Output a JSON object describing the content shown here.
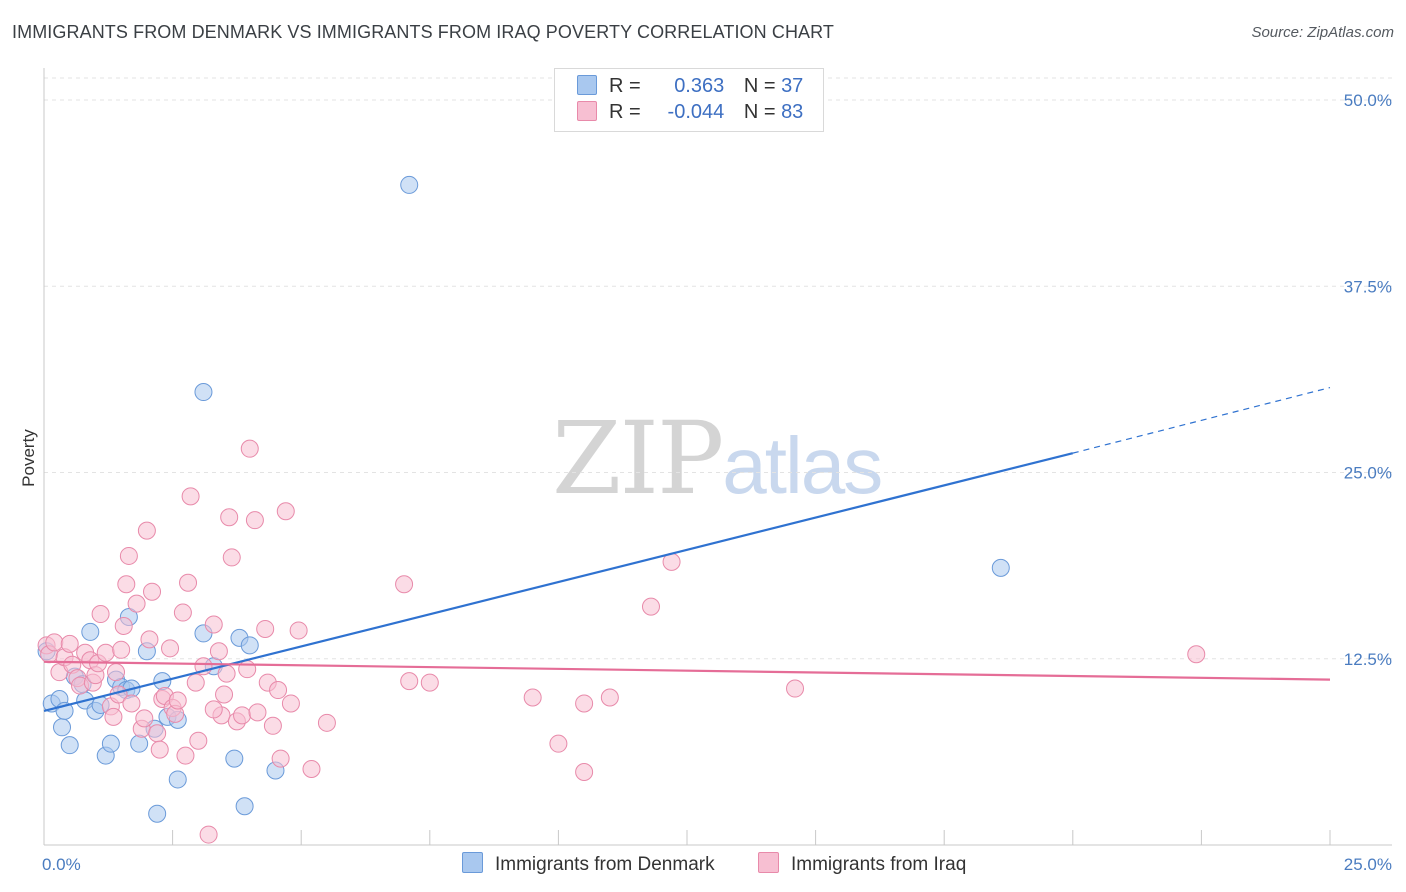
{
  "title": "IMMIGRANTS FROM DENMARK VS IMMIGRANTS FROM IRAQ POVERTY CORRELATION CHART",
  "source": "Source: ZipAtlas.com",
  "watermark": {
    "zip": "ZIP",
    "atlas": "atlas"
  },
  "legend_top": [
    {
      "r_label": "R =",
      "r_value": "0.363",
      "n_label": "N =",
      "n_value": "37",
      "color": "#a9c8ef",
      "border": "#6a9ad9"
    },
    {
      "r_label": "R =",
      "r_value": "-0.044",
      "n_label": "N =",
      "n_value": "83",
      "color": "#f7bfd2",
      "border": "#e88aaa"
    }
  ],
  "legend_bottom": [
    {
      "label": "Immigrants from Denmark",
      "color": "#a9c8ef",
      "border": "#6a9ad9"
    },
    {
      "label": "Immigrants from Iraq",
      "color": "#f7bfd2",
      "border": "#e88aaa"
    }
  ],
  "chart_data": {
    "type": "scatter",
    "title": "IMMIGRANTS FROM DENMARK VS IMMIGRANTS FROM IRAQ POVERTY CORRELATION CHART",
    "xlabel": "",
    "ylabel": "Poverty",
    "xlim": [
      0,
      25
    ],
    "ylim": [
      0,
      50
    ],
    "x_tick_labels": [
      "0.0%",
      "25.0%"
    ],
    "y_ticks": [
      12.5,
      25.0,
      37.5,
      50.0
    ],
    "y_tick_labels": [
      "12.5%",
      "25.0%",
      "37.5%",
      "50.0%"
    ],
    "grid": true,
    "series": [
      {
        "name": "Immigrants from Denmark",
        "color": "#a9c8ef",
        "stroke": "#6a9ad9",
        "line_color": "#2f72d0",
        "trend": {
          "x": [
            0,
            20
          ],
          "y": [
            9.0,
            26.3
          ],
          "dashed_to": [
            25,
            30.7
          ]
        },
        "points": [
          [
            0.15,
            9.5
          ],
          [
            0.3,
            9.8
          ],
          [
            0.35,
            7.9
          ],
          [
            0.4,
            9.0
          ],
          [
            0.5,
            6.7
          ],
          [
            0.6,
            11.3
          ],
          [
            0.75,
            10.8
          ],
          [
            0.8,
            9.7
          ],
          [
            0.9,
            14.3
          ],
          [
            1.0,
            9.0
          ],
          [
            1.1,
            9.4
          ],
          [
            1.2,
            6.0
          ],
          [
            1.3,
            6.8
          ],
          [
            1.4,
            11.1
          ],
          [
            1.5,
            10.6
          ],
          [
            1.6,
            10.4
          ],
          [
            1.65,
            15.3
          ],
          [
            1.7,
            10.5
          ],
          [
            1.85,
            6.8
          ],
          [
            2.0,
            13.0
          ],
          [
            2.15,
            7.8
          ],
          [
            2.2,
            2.1
          ],
          [
            2.3,
            11.0
          ],
          [
            2.4,
            8.6
          ],
          [
            2.6,
            4.4
          ],
          [
            2.6,
            8.4
          ],
          [
            3.1,
            30.4
          ],
          [
            3.1,
            14.2
          ],
          [
            3.3,
            12.0
          ],
          [
            3.7,
            5.8
          ],
          [
            3.8,
            13.9
          ],
          [
            3.9,
            2.6
          ],
          [
            4.0,
            13.4
          ],
          [
            4.5,
            5.0
          ],
          [
            7.1,
            44.3
          ],
          [
            18.6,
            18.6
          ],
          [
            0.05,
            13.0
          ]
        ]
      },
      {
        "name": "Immigrants from Iraq",
        "color": "#f7bfd2",
        "stroke": "#e88aaa",
        "line_color": "#e56d97",
        "trend": {
          "x": [
            0,
            25
          ],
          "y": [
            12.3,
            11.1
          ]
        },
        "points": [
          [
            0.05,
            13.4
          ],
          [
            0.1,
            12.8
          ],
          [
            0.2,
            13.6
          ],
          [
            0.3,
            11.6
          ],
          [
            0.4,
            12.6
          ],
          [
            0.5,
            13.5
          ],
          [
            0.55,
            12.1
          ],
          [
            0.65,
            11.2
          ],
          [
            0.7,
            10.7
          ],
          [
            0.8,
            12.9
          ],
          [
            0.9,
            12.4
          ],
          [
            0.95,
            10.9
          ],
          [
            1.0,
            11.4
          ],
          [
            1.05,
            12.2
          ],
          [
            1.1,
            15.5
          ],
          [
            1.2,
            12.9
          ],
          [
            1.3,
            9.3
          ],
          [
            1.35,
            8.6
          ],
          [
            1.45,
            10.1
          ],
          [
            1.5,
            13.1
          ],
          [
            1.55,
            14.7
          ],
          [
            1.6,
            17.5
          ],
          [
            1.65,
            19.4
          ],
          [
            1.7,
            9.5
          ],
          [
            1.8,
            16.2
          ],
          [
            1.9,
            7.8
          ],
          [
            1.95,
            8.5
          ],
          [
            2.0,
            21.1
          ],
          [
            2.05,
            13.8
          ],
          [
            2.1,
            17.0
          ],
          [
            2.2,
            7.5
          ],
          [
            2.25,
            6.4
          ],
          [
            2.3,
            9.8
          ],
          [
            2.35,
            10.0
          ],
          [
            2.45,
            13.2
          ],
          [
            2.5,
            9.2
          ],
          [
            2.55,
            8.8
          ],
          [
            2.6,
            9.7
          ],
          [
            2.7,
            15.6
          ],
          [
            2.75,
            6.0
          ],
          [
            2.8,
            17.6
          ],
          [
            2.85,
            23.4
          ],
          [
            2.95,
            10.9
          ],
          [
            3.0,
            7.0
          ],
          [
            3.1,
            12.0
          ],
          [
            3.2,
            0.7
          ],
          [
            3.3,
            14.8
          ],
          [
            3.4,
            13.0
          ],
          [
            3.45,
            8.7
          ],
          [
            3.5,
            10.1
          ],
          [
            3.55,
            11.5
          ],
          [
            3.6,
            22.0
          ],
          [
            3.65,
            19.3
          ],
          [
            3.75,
            8.3
          ],
          [
            3.85,
            8.7
          ],
          [
            3.95,
            11.8
          ],
          [
            4.0,
            26.6
          ],
          [
            4.1,
            21.8
          ],
          [
            4.15,
            8.9
          ],
          [
            4.3,
            14.5
          ],
          [
            4.35,
            10.9
          ],
          [
            4.45,
            8.0
          ],
          [
            4.55,
            10.4
          ],
          [
            4.6,
            5.8
          ],
          [
            4.7,
            22.4
          ],
          [
            4.8,
            9.5
          ],
          [
            4.95,
            14.4
          ],
          [
            5.2,
            5.1
          ],
          [
            5.5,
            8.2
          ],
          [
            7.0,
            17.5
          ],
          [
            7.1,
            11.0
          ],
          [
            7.5,
            10.9
          ],
          [
            9.5,
            9.9
          ],
          [
            10.0,
            6.8
          ],
          [
            10.5,
            4.9
          ],
          [
            10.5,
            9.5
          ],
          [
            11.0,
            9.9
          ],
          [
            11.8,
            16.0
          ],
          [
            12.2,
            19.0
          ],
          [
            14.6,
            10.5
          ],
          [
            22.4,
            12.8
          ],
          [
            3.3,
            9.1
          ],
          [
            1.4,
            11.6
          ]
        ]
      }
    ]
  }
}
